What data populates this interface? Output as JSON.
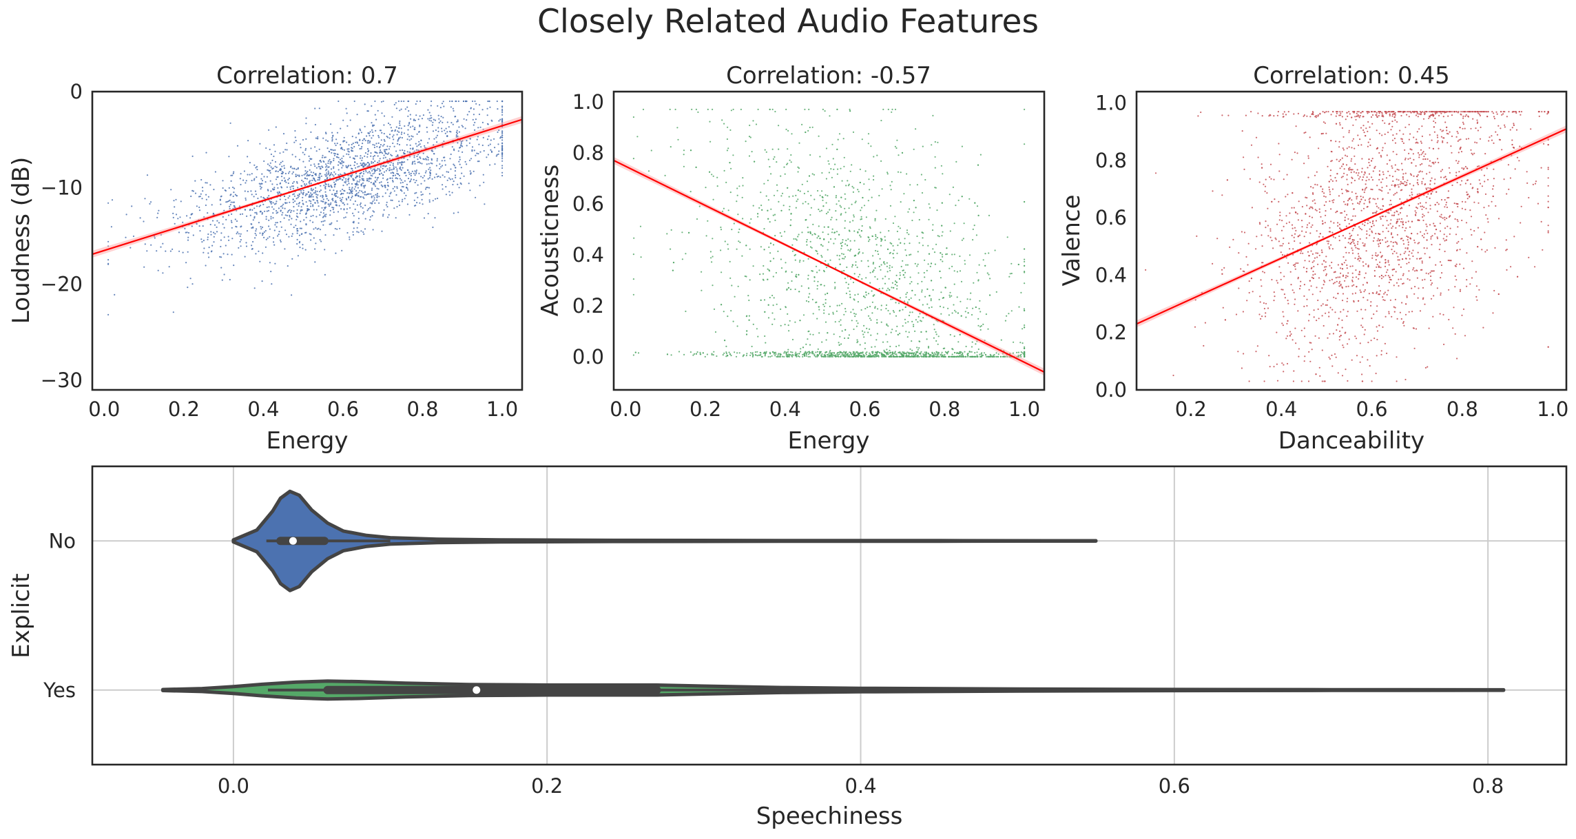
{
  "figure": {
    "title": "Closely Related Audio Features"
  },
  "chart_data": [
    {
      "type": "scatter",
      "title": "Correlation: 0.7",
      "xlabel": "Energy",
      "ylabel": "Loudness (dB)",
      "xlim": [
        -0.03,
        1.05
      ],
      "ylim": [
        -31,
        0
      ],
      "xticks": [
        0.0,
        0.2,
        0.4,
        0.6,
        0.8,
        1.0
      ],
      "xtick_labels": [
        "0.0",
        "0.2",
        "0.4",
        "0.6",
        "0.8",
        "1.0"
      ],
      "yticks": [
        0,
        -10,
        -20,
        -30
      ],
      "ytick_labels": [
        "0",
        "−10",
        "−20",
        "−30"
      ],
      "point_color": "#4c72b0",
      "fit_line": {
        "color": "#ff0000",
        "x": [
          -0.03,
          1.05
        ],
        "y": [
          -16.9,
          -2.9
        ]
      },
      "fit_ci_color": "#ff9999",
      "grid": false
    },
    {
      "type": "scatter",
      "title": "Correlation: -0.57",
      "xlabel": "Energy",
      "ylabel": "Acousticness",
      "xlim": [
        -0.03,
        1.05
      ],
      "ylim": [
        -0.13,
        1.04
      ],
      "xticks": [
        0.0,
        0.2,
        0.4,
        0.6,
        0.8,
        1.0
      ],
      "xtick_labels": [
        "0.0",
        "0.2",
        "0.4",
        "0.6",
        "0.8",
        "1.0"
      ],
      "yticks": [
        0.0,
        0.2,
        0.4,
        0.6,
        0.8,
        1.0
      ],
      "ytick_labels": [
        "0.0",
        "0.2",
        "0.4",
        "0.6",
        "0.8",
        "1.0"
      ],
      "point_color": "#55a868",
      "fit_line": {
        "color": "#ff0000",
        "x": [
          -0.03,
          1.05
        ],
        "y": [
          0.77,
          -0.06
        ]
      },
      "fit_ci_color": "#ff9999",
      "grid": false
    },
    {
      "type": "scatter",
      "title": "Correlation: 0.45",
      "xlabel": "Danceability",
      "ylabel": "Valence",
      "xlim": [
        0.08,
        1.03
      ],
      "ylim": [
        0.0,
        1.04
      ],
      "xticks": [
        0.2,
        0.4,
        0.6,
        0.8,
        1.0
      ],
      "xtick_labels": [
        "0.2",
        "0.4",
        "0.6",
        "0.8",
        "1.0"
      ],
      "yticks": [
        0.0,
        0.2,
        0.4,
        0.6,
        0.8,
        1.0
      ],
      "ytick_labels": [
        "0.0",
        "0.2",
        "0.4",
        "0.6",
        "0.8",
        "1.0"
      ],
      "point_color": "#c44e52",
      "fit_line": {
        "color": "#ff0000",
        "x": [
          0.08,
          1.03
        ],
        "y": [
          0.23,
          0.91
        ]
      },
      "fit_ci_color": "#ff9999",
      "grid": false
    },
    {
      "type": "violin",
      "title": "",
      "xlabel": "Speechiness",
      "ylabel": "Explicit",
      "xlim": [
        -0.09,
        0.85
      ],
      "xticks": [
        0.0,
        0.2,
        0.4,
        0.6,
        0.8
      ],
      "xtick_labels": [
        "0.0",
        "0.2",
        "0.4",
        "0.6",
        "0.8"
      ],
      "grid": true,
      "categories": [
        "No",
        "Yes"
      ],
      "series": [
        {
          "category": "No",
          "color": "#4c72b0",
          "range": [
            0.0,
            0.55
          ],
          "median": 0.038,
          "quartiles": [
            0.03,
            0.058
          ],
          "whiskers": [
            0.021,
            0.1
          ],
          "density_x": [
            0.0,
            0.015,
            0.025,
            0.03,
            0.036,
            0.042,
            0.05,
            0.06,
            0.07,
            0.085,
            0.1,
            0.13,
            0.17,
            0.25,
            0.35,
            0.45,
            0.55
          ],
          "density_w": [
            0.02,
            0.22,
            0.6,
            0.86,
            1.0,
            0.92,
            0.62,
            0.36,
            0.2,
            0.11,
            0.065,
            0.035,
            0.02,
            0.012,
            0.008,
            0.006,
            0.004
          ]
        },
        {
          "category": "Yes",
          "color": "#55a868",
          "range": [
            -0.045,
            0.81
          ],
          "median": 0.155,
          "quartiles": [
            0.06,
            0.27
          ],
          "whiskers": [
            0.022,
            0.57
          ],
          "density_x": [
            -0.045,
            -0.02,
            0.0,
            0.02,
            0.04,
            0.06,
            0.08,
            0.11,
            0.15,
            0.2,
            0.24,
            0.27,
            0.3,
            0.35,
            0.4,
            0.5,
            0.6,
            0.7,
            0.81
          ],
          "density_w": [
            0.01,
            0.03,
            0.07,
            0.12,
            0.16,
            0.18,
            0.17,
            0.14,
            0.11,
            0.1,
            0.1,
            0.1,
            0.08,
            0.05,
            0.035,
            0.02,
            0.012,
            0.008,
            0.005
          ]
        }
      ]
    }
  ]
}
